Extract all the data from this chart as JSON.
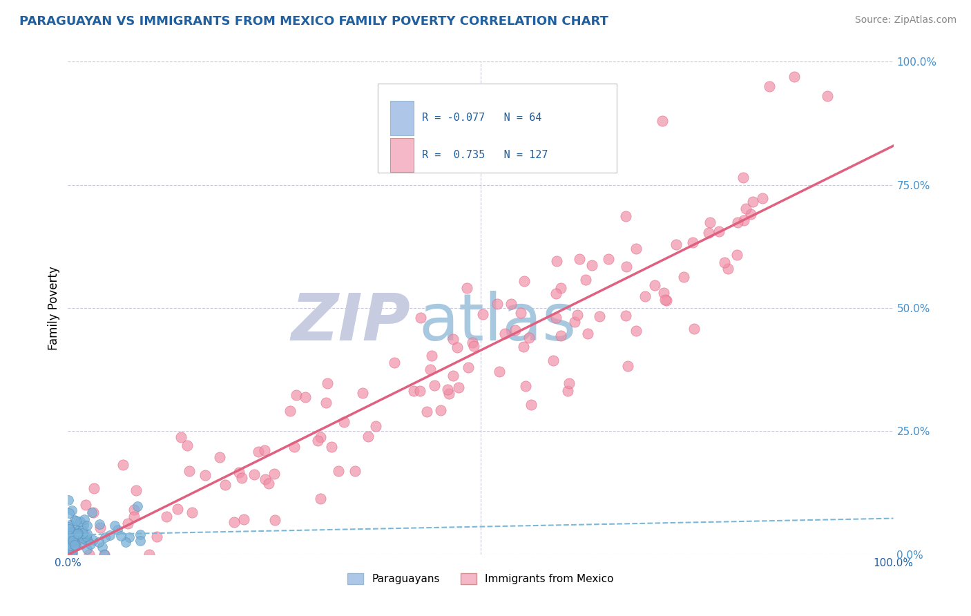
{
  "title": "PARAGUAYAN VS IMMIGRANTS FROM MEXICO FAMILY POVERTY CORRELATION CHART",
  "source": "Source: ZipAtlas.com",
  "ylabel": "Family Poverty",
  "legend_label1": "Paraguayans",
  "legend_label2": "Immigrants from Mexico",
  "r1": -0.077,
  "n1": 64,
  "r2": 0.735,
  "n2": 127,
  "blue_color": "#aec6e8",
  "pink_color": "#f4b8c8",
  "blue_line_color": "#7ab8d8",
  "pink_line_color": "#e06080",
  "blue_dot_color": "#7ab0d8",
  "pink_dot_color": "#f090a8",
  "grid_color": "#c8c8d8",
  "watermark_zip_color": "#c8cce0",
  "watermark_atlas_color": "#a8c8e0",
  "title_color": "#2060a0",
  "tick_color_right": "#4090d0",
  "background_color": "#ffffff",
  "seed": 42
}
